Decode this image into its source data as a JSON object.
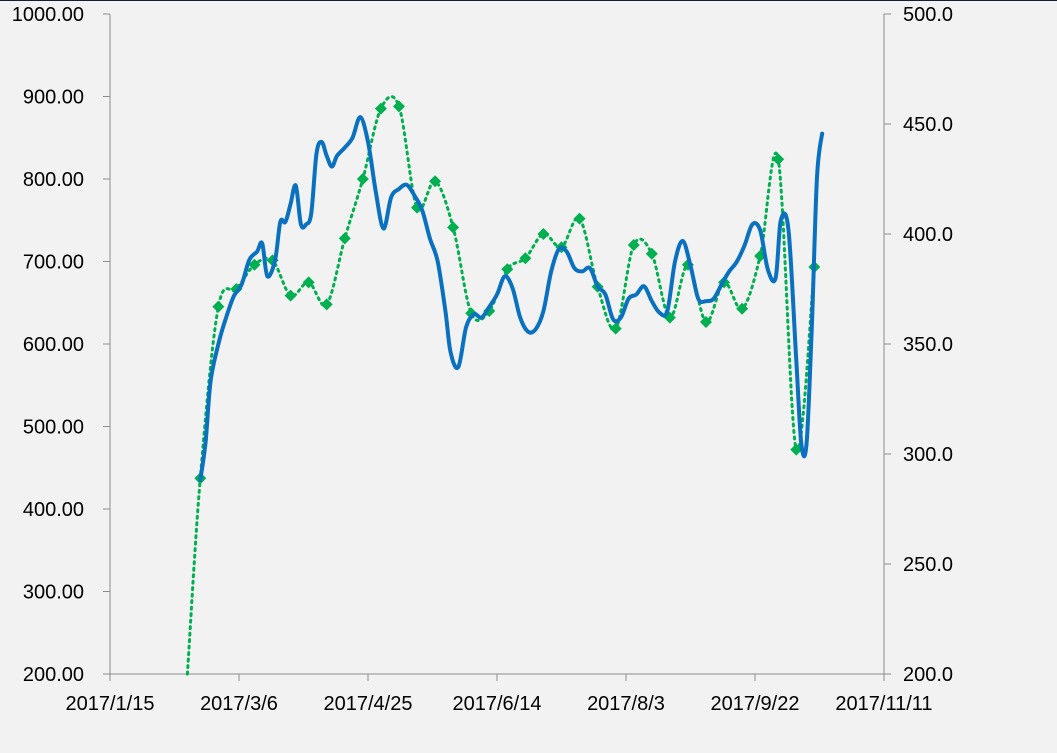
{
  "chart_data": {
    "type": "line",
    "title": "",
    "xlabel": "",
    "ylabel": "",
    "grid": false,
    "legend": "none",
    "x_axis": {
      "min": "2017-01-15",
      "max": "2017-11-11",
      "tick_labels": [
        "2017/1/15",
        "2017/3/6",
        "2017/4/25",
        "2017/6/14",
        "2017/8/3",
        "2017/9/22",
        "2017/11/11"
      ]
    },
    "y_left": {
      "min": 200,
      "max": 1000,
      "tick_labels": [
        "200.00",
        "300.00",
        "400.00",
        "500.00",
        "600.00",
        "700.00",
        "800.00",
        "900.00",
        "1000.00"
      ]
    },
    "y_right": {
      "min": 200,
      "max": 500,
      "tick_labels": [
        "200.0",
        "250.0",
        "300.0",
        "350.0",
        "400.0",
        "450.0",
        "500.0"
      ]
    },
    "series": [
      {
        "axis": "left",
        "style": "solid",
        "color": "#0a70c0",
        "points": [
          [
            "2017-02-19",
            435
          ],
          [
            "2017-02-21",
            480
          ],
          [
            "2017-02-23",
            555
          ],
          [
            "2017-02-26",
            600
          ],
          [
            "2017-03-01",
            632
          ],
          [
            "2017-03-04",
            658
          ],
          [
            "2017-03-07",
            672
          ],
          [
            "2017-03-10",
            702
          ],
          [
            "2017-03-13",
            712
          ],
          [
            "2017-03-15",
            722
          ],
          [
            "2017-03-17",
            682
          ],
          [
            "2017-03-20",
            702
          ],
          [
            "2017-03-22",
            748
          ],
          [
            "2017-03-24",
            748
          ],
          [
            "2017-03-26",
            770
          ],
          [
            "2017-03-28",
            792
          ],
          [
            "2017-03-30",
            745
          ],
          [
            "2017-04-01",
            745
          ],
          [
            "2017-04-03",
            758
          ],
          [
            "2017-04-05",
            830
          ],
          [
            "2017-04-07",
            845
          ],
          [
            "2017-04-09",
            828
          ],
          [
            "2017-04-11",
            815
          ],
          [
            "2017-04-13",
            828
          ],
          [
            "2017-04-16",
            838
          ],
          [
            "2017-04-19",
            850
          ],
          [
            "2017-04-22",
            875
          ],
          [
            "2017-04-25",
            845
          ],
          [
            "2017-04-28",
            785
          ],
          [
            "2017-05-01",
            740
          ],
          [
            "2017-05-04",
            778
          ],
          [
            "2017-05-07",
            788
          ],
          [
            "2017-05-10",
            793
          ],
          [
            "2017-05-13",
            780
          ],
          [
            "2017-05-16",
            762
          ],
          [
            "2017-05-19",
            728
          ],
          [
            "2017-05-22",
            700
          ],
          [
            "2017-05-25",
            640
          ],
          [
            "2017-05-27",
            590
          ],
          [
            "2017-05-30",
            572
          ],
          [
            "2017-06-02",
            620
          ],
          [
            "2017-06-05",
            636
          ],
          [
            "2017-06-08",
            632
          ],
          [
            "2017-06-11",
            645
          ],
          [
            "2017-06-14",
            660
          ],
          [
            "2017-06-17",
            682
          ],
          [
            "2017-06-20",
            668
          ],
          [
            "2017-06-23",
            632
          ],
          [
            "2017-06-26",
            615
          ],
          [
            "2017-06-29",
            618
          ],
          [
            "2017-07-02",
            640
          ],
          [
            "2017-07-05",
            688
          ],
          [
            "2017-07-08",
            715
          ],
          [
            "2017-07-11",
            712
          ],
          [
            "2017-07-14",
            692
          ],
          [
            "2017-07-17",
            688
          ],
          [
            "2017-07-20",
            692
          ],
          [
            "2017-07-23",
            670
          ],
          [
            "2017-07-26",
            660
          ],
          [
            "2017-07-29",
            630
          ],
          [
            "2017-08-01",
            632
          ],
          [
            "2017-08-04",
            655
          ],
          [
            "2017-08-07",
            660
          ],
          [
            "2017-08-10",
            670
          ],
          [
            "2017-08-13",
            652
          ],
          [
            "2017-08-16",
            638
          ],
          [
            "2017-08-19",
            640
          ],
          [
            "2017-08-22",
            700
          ],
          [
            "2017-08-25",
            725
          ],
          [
            "2017-08-28",
            695
          ],
          [
            "2017-08-31",
            655
          ],
          [
            "2017-09-03",
            652
          ],
          [
            "2017-09-06",
            655
          ],
          [
            "2017-09-09",
            672
          ],
          [
            "2017-09-12",
            688
          ],
          [
            "2017-09-15",
            700
          ],
          [
            "2017-09-18",
            720
          ],
          [
            "2017-09-21",
            745
          ],
          [
            "2017-09-24",
            738
          ],
          [
            "2017-09-27",
            690
          ],
          [
            "2017-09-30",
            680
          ],
          [
            "2017-10-02",
            750
          ],
          [
            "2017-10-05",
            738
          ],
          [
            "2017-10-08",
            580
          ],
          [
            "2017-10-10",
            478
          ],
          [
            "2017-10-12",
            480
          ],
          [
            "2017-10-14",
            620
          ],
          [
            "2017-10-16",
            800
          ],
          [
            "2017-10-18",
            855
          ]
        ]
      },
      {
        "axis": "right",
        "style": "dotted",
        "color": "#00b050",
        "points": [
          [
            "2017-02-14",
            200
          ],
          [
            "2017-02-19",
            289
          ],
          [
            "2017-02-26",
            367
          ],
          [
            "2017-03-05",
            375
          ],
          [
            "2017-03-12",
            386
          ],
          [
            "2017-03-19",
            388
          ],
          [
            "2017-03-26",
            372
          ],
          [
            "2017-04-02",
            378
          ],
          [
            "2017-04-09",
            368
          ],
          [
            "2017-04-16",
            398
          ],
          [
            "2017-04-23",
            425
          ],
          [
            "2017-04-30",
            457
          ],
          [
            "2017-05-07",
            458
          ],
          [
            "2017-05-14",
            412
          ],
          [
            "2017-05-21",
            424
          ],
          [
            "2017-05-28",
            403
          ],
          [
            "2017-06-04",
            364
          ],
          [
            "2017-06-11",
            365
          ],
          [
            "2017-06-18",
            384
          ],
          [
            "2017-06-25",
            389
          ],
          [
            "2017-07-02",
            400
          ],
          [
            "2017-07-09",
            394
          ],
          [
            "2017-07-16",
            407
          ],
          [
            "2017-07-23",
            376
          ],
          [
            "2017-07-30",
            357
          ],
          [
            "2017-08-06",
            395
          ],
          [
            "2017-08-13",
            391
          ],
          [
            "2017-08-20",
            362
          ],
          [
            "2017-08-27",
            386
          ],
          [
            "2017-09-03",
            360
          ],
          [
            "2017-09-10",
            378
          ],
          [
            "2017-09-17",
            366
          ],
          [
            "2017-09-24",
            390
          ],
          [
            "2017-10-01",
            434
          ],
          [
            "2017-10-08",
            302
          ],
          [
            "2017-10-15",
            385
          ]
        ]
      }
    ]
  }
}
